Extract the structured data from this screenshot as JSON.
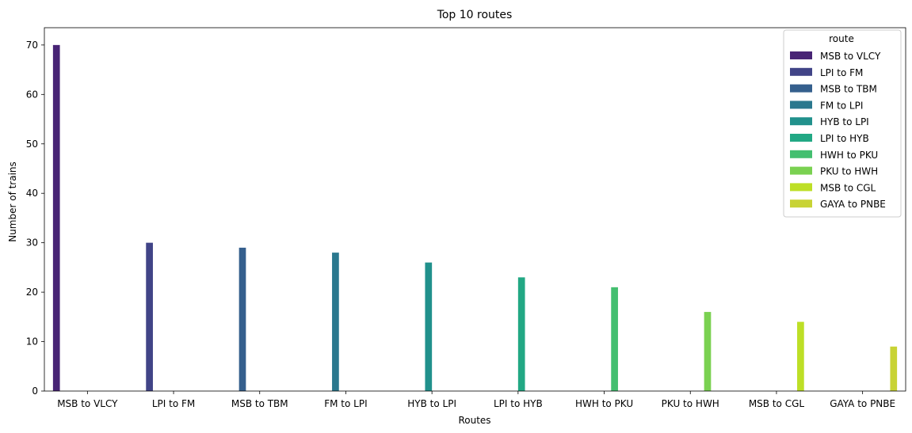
{
  "chart_data": {
    "type": "bar",
    "title": "Top 10 routes",
    "xlabel": "Routes",
    "ylabel": "Number of trains",
    "categories": [
      "MSB to VLCY",
      "LPI to FM",
      "MSB to TBM",
      "FM to LPI",
      "HYB to LPI",
      "LPI to HYB",
      "HWH to PKU",
      "PKU to HWH",
      "MSB to CGL",
      "GAYA to PNBE"
    ],
    "series": [
      {
        "name": "MSB to VLCY",
        "values": [
          70,
          0,
          0,
          0,
          0,
          0,
          0,
          0,
          0,
          0
        ],
        "color": "#482475"
      },
      {
        "name": "LPI to FM",
        "values": [
          0,
          30,
          0,
          0,
          0,
          0,
          0,
          0,
          0,
          0
        ],
        "color": "#414487"
      },
      {
        "name": "MSB to TBM",
        "values": [
          0,
          0,
          29,
          0,
          0,
          0,
          0,
          0,
          0,
          0
        ],
        "color": "#355f8d"
      },
      {
        "name": "FM to LPI",
        "values": [
          0,
          0,
          0,
          28,
          0,
          0,
          0,
          0,
          0,
          0
        ],
        "color": "#2a788e"
      },
      {
        "name": "HYB to LPI",
        "values": [
          0,
          0,
          0,
          0,
          26,
          0,
          0,
          0,
          0,
          0
        ],
        "color": "#21918c"
      },
      {
        "name": "LPI to HYB",
        "values": [
          0,
          0,
          0,
          0,
          0,
          23,
          0,
          0,
          0,
          0
        ],
        "color": "#22a884"
      },
      {
        "name": "HWH to PKU",
        "values": [
          0,
          0,
          0,
          0,
          0,
          0,
          21,
          0,
          0,
          0
        ],
        "color": "#44bf70"
      },
      {
        "name": "PKU to HWH",
        "values": [
          0,
          0,
          0,
          0,
          0,
          0,
          0,
          16,
          0,
          0
        ],
        "color": "#7ad151"
      },
      {
        "name": "MSB to CGL",
        "values": [
          0,
          0,
          0,
          0,
          0,
          0,
          0,
          0,
          14,
          0
        ],
        "color": "#bddf26"
      },
      {
        "name": "GAYA to PNBE",
        "values": [
          0,
          0,
          0,
          0,
          0,
          0,
          0,
          0,
          0,
          9
        ],
        "color": "#c8d335"
      }
    ],
    "ylim": [
      0,
      73.5
    ],
    "yticks": [
      0,
      10,
      20,
      30,
      40,
      50,
      60,
      70
    ],
    "grid": false,
    "legend": {
      "title": "route",
      "position": "top-right"
    }
  }
}
